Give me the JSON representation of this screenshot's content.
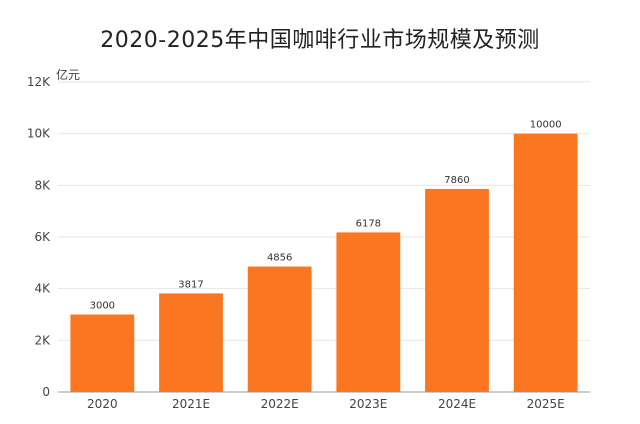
{
  "chart_data": {
    "type": "bar",
    "title": "2020-2025年中国咖啡行业市场规模及预测",
    "unit_label": "亿元",
    "categories": [
      "2020",
      "2021E",
      "2022E",
      "2023E",
      "2024E",
      "2025E"
    ],
    "values": [
      3000,
      3817,
      4856,
      6178,
      7860,
      10000
    ],
    "value_labels": [
      "3000",
      "3817",
      "4856",
      "6178",
      "7860",
      "10000"
    ],
    "ylim": [
      0,
      12000
    ],
    "yticks": [
      0,
      2000,
      4000,
      6000,
      8000,
      10000,
      12000
    ],
    "ytick_labels": [
      "0",
      "2K",
      "4K",
      "6K",
      "8K",
      "10K",
      "12K"
    ],
    "grid": true,
    "bar_color": "#FA7620",
    "grid_color": "#E6E6E6",
    "axis_color": "#999999"
  }
}
